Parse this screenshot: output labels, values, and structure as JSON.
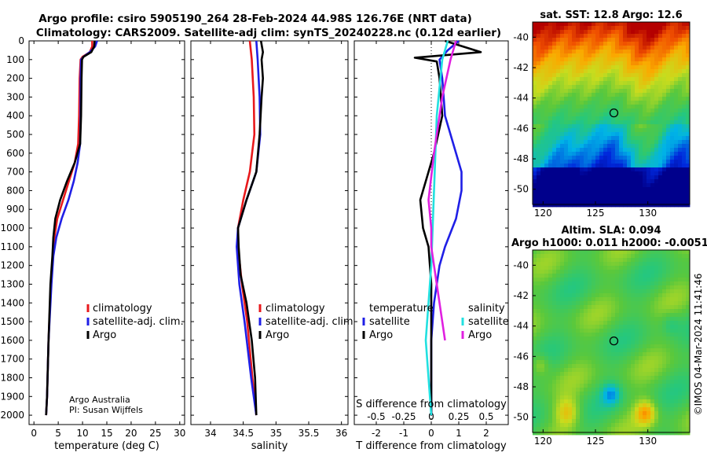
{
  "title": {
    "line1": "Argo profile: csiro 5905190_264 28-Feb-2024 44.98S 126.76E (NRT data)",
    "line2": "Climatology: CARS2009. Satellite-adj clim: synTS_20240228.nc (0.12d earlier)"
  },
  "depth_ticks": [
    0,
    100,
    200,
    300,
    400,
    500,
    600,
    700,
    800,
    900,
    1000,
    1100,
    1200,
    1300,
    1400,
    1500,
    1600,
    1700,
    1800,
    1900,
    2000
  ],
  "credit": {
    "line1": "Argo Australia",
    "line2": "PI: Susan Wijffels"
  },
  "timestamp": "©IMOS 04-Mar-2024 11:41:46",
  "colors": {
    "climatology": "#e8191c",
    "satellite": "#1f1fe6",
    "argo": "#000000",
    "sat_t_diff": "#22e0e0",
    "argo_s_diff": "#e020e0"
  },
  "chart_data": [
    {
      "type": "line",
      "name": "temperature-panel",
      "xlabel": "temperature (deg C)",
      "ylabel": "depth",
      "xlim": [
        -1,
        31
      ],
      "ylim": [
        2050,
        0
      ],
      "xticks": [
        0,
        5,
        10,
        15,
        20,
        25,
        30
      ],
      "legend": [
        "climatology",
        "satellite-adj. clim.",
        "Argo"
      ],
      "series": [
        {
          "name": "climatology",
          "color": "#e8191c",
          "points": [
            [
              12.0,
              0
            ],
            [
              12.0,
              30
            ],
            [
              11.5,
              60
            ],
            [
              10.0,
              85
            ],
            [
              9.6,
              100
            ],
            [
              9.4,
              200
            ],
            [
              9.3,
              400
            ],
            [
              9.1,
              550
            ],
            [
              8.4,
              650
            ],
            [
              7.2,
              750
            ],
            [
              6.0,
              850
            ],
            [
              4.8,
              950
            ],
            [
              4.2,
              1050
            ],
            [
              3.9,
              1150
            ],
            [
              3.5,
              1300
            ],
            [
              3.0,
              1600
            ],
            [
              2.7,
              1900
            ],
            [
              2.5,
              2000
            ]
          ]
        },
        {
          "name": "satellite-adj. clim.",
          "color": "#1f1fe6",
          "points": [
            [
              13.0,
              0
            ],
            [
              12.6,
              30
            ],
            [
              11.5,
              60
            ],
            [
              10.2,
              85
            ],
            [
              9.7,
              100
            ],
            [
              9.6,
              200
            ],
            [
              9.6,
              400
            ],
            [
              9.5,
              550
            ],
            [
              9.0,
              650
            ],
            [
              8.2,
              750
            ],
            [
              7.1,
              850
            ],
            [
              5.7,
              950
            ],
            [
              4.6,
              1050
            ],
            [
              4.0,
              1150
            ],
            [
              3.6,
              1300
            ],
            [
              3.0,
              1600
            ],
            [
              2.7,
              1900
            ],
            [
              2.5,
              2000
            ]
          ]
        },
        {
          "name": "Argo",
          "color": "#000000",
          "points": [
            [
              12.5,
              0
            ],
            [
              12.4,
              30
            ],
            [
              11.8,
              60
            ],
            [
              10.2,
              85
            ],
            [
              9.9,
              100
            ],
            [
              9.8,
              200
            ],
            [
              9.7,
              400
            ],
            [
              9.5,
              550
            ],
            [
              8.4,
              650
            ],
            [
              6.8,
              750
            ],
            [
              5.4,
              850
            ],
            [
              4.4,
              950
            ],
            [
              4.0,
              1050
            ],
            [
              3.8,
              1150
            ],
            [
              3.4,
              1300
            ],
            [
              3.0,
              1600
            ],
            [
              2.7,
              1900
            ],
            [
              2.5,
              2000
            ]
          ]
        }
      ]
    },
    {
      "type": "line",
      "name": "salinity-panel",
      "xlabel": "salinity",
      "ylabel": "depth",
      "xlim": [
        33.7,
        36.1
      ],
      "ylim": [
        2050,
        0
      ],
      "xticks": [
        34,
        34.5,
        35,
        35.5,
        36
      ],
      "xtick_labels": [
        "34",
        "34.5",
        "35",
        "35.5",
        "36"
      ],
      "legend": [
        "climatology",
        "satellite-adj. clim.",
        "Argo"
      ],
      "series": [
        {
          "name": "climatology",
          "color": "#e8191c",
          "points": [
            [
              34.6,
              0
            ],
            [
              34.63,
              100
            ],
            [
              34.66,
              300
            ],
            [
              34.67,
              500
            ],
            [
              34.6,
              700
            ],
            [
              34.5,
              850
            ],
            [
              34.42,
              1000
            ],
            [
              34.42,
              1100
            ],
            [
              34.48,
              1300
            ],
            [
              34.56,
              1500
            ],
            [
              34.64,
              1800
            ],
            [
              34.7,
              2000
            ]
          ]
        },
        {
          "name": "satellite-adj. clim.",
          "color": "#1f1fe6",
          "points": [
            [
              34.7,
              0
            ],
            [
              34.72,
              100
            ],
            [
              34.75,
              300
            ],
            [
              34.76,
              500
            ],
            [
              34.7,
              700
            ],
            [
              34.55,
              850
            ],
            [
              34.42,
              1000
            ],
            [
              34.4,
              1100
            ],
            [
              34.44,
              1300
            ],
            [
              34.52,
              1500
            ],
            [
              34.62,
              1800
            ],
            [
              34.7,
              2000
            ]
          ]
        },
        {
          "name": "Argo",
          "color": "#000000",
          "points": [
            [
              34.77,
              0
            ],
            [
              34.8,
              60
            ],
            [
              34.78,
              100
            ],
            [
              34.8,
              200
            ],
            [
              34.78,
              300
            ],
            [
              34.75,
              500
            ],
            [
              34.7,
              700
            ],
            [
              34.55,
              850
            ],
            [
              34.42,
              1000
            ],
            [
              34.43,
              1100
            ],
            [
              34.46,
              1250
            ],
            [
              34.55,
              1400
            ],
            [
              34.63,
              1600
            ],
            [
              34.68,
              1800
            ],
            [
              34.7,
              2000
            ]
          ]
        }
      ]
    },
    {
      "type": "line",
      "name": "difference-panel",
      "xlabel": "T difference from climatology",
      "x2label": "S difference from climatology",
      "ylabel": "depth",
      "xlim": [
        -2.8,
        2.8
      ],
      "ylim": [
        2050,
        0
      ],
      "xticks": [
        -2,
        -1,
        0,
        1,
        2
      ],
      "x2ticks": [
        -0.5,
        -0.25,
        0,
        0.25,
        0.5
      ],
      "x2tick_labels": [
        "-0.5",
        "-0.25",
        "0",
        "0.25",
        "0.5"
      ],
      "legend": [
        "temperature: satellite",
        "temperature: Argo",
        "salinity: satellite",
        "salinity: Argo"
      ],
      "series": [
        {
          "name": "temperature: satellite",
          "color": "#1f1fe6",
          "points": [
            [
              1.0,
              0
            ],
            [
              0.6,
              50
            ],
            [
              0.3,
              100
            ],
            [
              0.4,
              200
            ],
            [
              0.5,
              400
            ],
            [
              0.9,
              600
            ],
            [
              1.1,
              700
            ],
            [
              1.1,
              800
            ],
            [
              0.9,
              950
            ],
            [
              0.5,
              1100
            ],
            [
              0.3,
              1200
            ],
            [
              0.1,
              1400
            ],
            [
              0.0,
              1600
            ],
            [
              0.0,
              2000
            ]
          ]
        },
        {
          "name": "temperature: Argo",
          "color": "#000000",
          "points": [
            [
              0.5,
              0
            ],
            [
              1.8,
              60
            ],
            [
              -0.6,
              90
            ],
            [
              0.2,
              110
            ],
            [
              0.3,
              200
            ],
            [
              0.4,
              400
            ],
            [
              0.1,
              600
            ],
            [
              -0.2,
              750
            ],
            [
              -0.4,
              850
            ],
            [
              -0.3,
              1000
            ],
            [
              -0.1,
              1100
            ],
            [
              0.0,
              1300
            ],
            [
              0.0,
              2000
            ]
          ]
        },
        {
          "name": "salinity: satellite",
          "color": "#22e0e0",
          "points": [
            [
              0.6,
              0
            ],
            [
              0.4,
              100
            ],
            [
              0.2,
              400
            ],
            [
              0.1,
              800
            ],
            [
              0.0,
              1200
            ],
            [
              -0.2,
              1600
            ],
            [
              -0.1,
              1800
            ],
            [
              0.0,
              2000
            ]
          ]
        },
        {
          "name": "salinity: Argo",
          "color": "#e020e0",
          "points": [
            [
              0.9,
              0
            ],
            [
              0.7,
              100
            ],
            [
              0.4,
              300
            ],
            [
              0.1,
              600
            ],
            [
              -0.1,
              850
            ],
            [
              0.0,
              1000
            ],
            [
              0.0,
              1100
            ],
            [
              0.2,
              1300
            ],
            [
              0.4,
              1500
            ],
            [
              0.5,
              1600
            ]
          ]
        }
      ]
    },
    {
      "type": "heatmap",
      "name": "sst-map",
      "title": "sat. SST: 12.8 Argo: 12.6",
      "xticks": [
        120,
        125,
        130
      ],
      "yticks": [
        -40,
        -42,
        -44,
        -46,
        -48,
        -50
      ],
      "xlim": [
        119,
        134
      ],
      "ylim": [
        -51,
        -39
      ],
      "marker": {
        "lon": 126.76,
        "lat": -44.98
      }
    },
    {
      "type": "heatmap",
      "name": "sla-map",
      "title": "Altim. SLA: 0.094",
      "subtitle": "Argo h1000: 0.011 h2000: -0.0051",
      "xticks": [
        120,
        125,
        130
      ],
      "yticks": [
        -40,
        -42,
        -44,
        -46,
        -48,
        -50
      ],
      "xlim": [
        119,
        134
      ],
      "ylim": [
        -51,
        -39
      ],
      "marker": {
        "lon": 126.76,
        "lat": -44.98
      }
    }
  ]
}
